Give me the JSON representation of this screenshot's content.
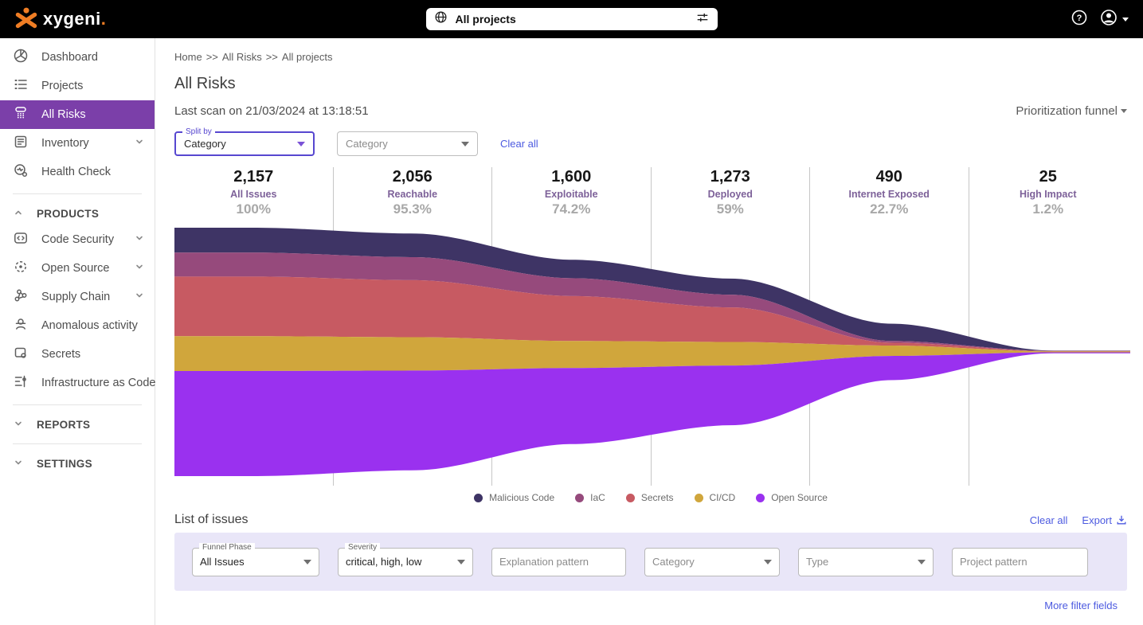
{
  "topbar": {
    "logo_text": "xygeni",
    "logo_dot": ".",
    "project_selector": {
      "value": "All projects",
      "left_icon": "globe-icon",
      "right_icon": "tune-icon"
    }
  },
  "sidebar": {
    "main_items": [
      {
        "label": "Dashboard",
        "icon": "dashboard-icon",
        "selected": false,
        "chevron": false
      },
      {
        "label": "Projects",
        "icon": "projects-icon",
        "selected": false,
        "chevron": false
      },
      {
        "label": "All Risks",
        "icon": "funnel-icon",
        "selected": true,
        "chevron": false
      },
      {
        "label": "Inventory",
        "icon": "inventory-icon",
        "selected": false,
        "chevron": true
      },
      {
        "label": "Health Check",
        "icon": "health-icon",
        "selected": false,
        "chevron": false
      }
    ],
    "sections": [
      {
        "label": "PRODUCTS",
        "chevron": "up",
        "items": [
          {
            "label": "Code Security",
            "icon": "code-security-icon",
            "chevron": true
          },
          {
            "label": "Open Source",
            "icon": "open-source-icon",
            "chevron": true
          },
          {
            "label": "Supply Chain",
            "icon": "supply-chain-icon",
            "chevron": true
          },
          {
            "label": "Anomalous activity",
            "icon": "anomalous-activity-icon",
            "chevron": false
          },
          {
            "label": "Secrets",
            "icon": "secrets-icon",
            "chevron": false
          },
          {
            "label": "Infrastructure as Code",
            "icon": "iac-icon",
            "chevron": false
          }
        ]
      },
      {
        "label": "REPORTS",
        "chevron": "down",
        "items": []
      },
      {
        "label": "SETTINGS",
        "chevron": "down",
        "items": []
      }
    ]
  },
  "header": {
    "breadcrumb": {
      "parts": [
        "Home",
        "All Risks",
        "All projects"
      ],
      "separator": ">>"
    },
    "title": "All Risks",
    "last_scan": "Last scan on 21/03/2024 at 13:18:51",
    "view_selector": "Prioritization funnel"
  },
  "chart_filters": {
    "split_by": {
      "label": "Split by",
      "value": "Category"
    },
    "category": {
      "placeholder": "Category"
    },
    "clear_all": "Clear all"
  },
  "chart_data": {
    "type": "area",
    "variant": "centered-stream prioritization funnel",
    "grid": "vertical stage dividers",
    "legend_position": "bottom",
    "stages": [
      {
        "count": "2,157",
        "label": "All Issues",
        "pct": "100%",
        "total": 2157
      },
      {
        "count": "2,056",
        "label": "Reachable",
        "pct": "95.3%",
        "total": 2056
      },
      {
        "count": "1,600",
        "label": "Exploitable",
        "pct": "74.2%",
        "total": 1600
      },
      {
        "count": "1,273",
        "label": "Deployed",
        "pct": "59%",
        "total": 1273
      },
      {
        "count": "490",
        "label": "Internet Exposed",
        "pct": "22.7%",
        "total": 490
      },
      {
        "count": "25",
        "label": "High Impact",
        "pct": "1.2%",
        "total": 25
      }
    ],
    "series": [
      {
        "name": "Malicious Code",
        "color": "#3e3465",
        "values": [
          216,
          205,
          160,
          140,
          150,
          3
        ]
      },
      {
        "name": "IaC",
        "color": "#964a7c",
        "values": [
          208,
          200,
          155,
          110,
          15,
          2
        ]
      },
      {
        "name": "Secrets",
        "color": "#c75a62",
        "values": [
          518,
          495,
          390,
          300,
          25,
          3
        ]
      },
      {
        "name": "CI/CD",
        "color": "#d0a63c",
        "values": [
          302,
          290,
          235,
          205,
          90,
          8
        ]
      },
      {
        "name": "Open Source",
        "color": "#9a31ef",
        "values": [
          913,
          866,
          660,
          518,
          210,
          9
        ]
      }
    ]
  },
  "issues": {
    "title": "List of issues",
    "clear_all": "Clear all",
    "export_label": "Export",
    "more_filters": "More filter fields",
    "fields": [
      {
        "type": "select",
        "label": "Funnel Phase",
        "value": "All Issues"
      },
      {
        "type": "select",
        "label": "Severity",
        "value": "critical, high, low"
      },
      {
        "type": "text",
        "placeholder": "Explanation pattern"
      },
      {
        "type": "select",
        "placeholder": "Category"
      },
      {
        "type": "select",
        "placeholder": "Type"
      },
      {
        "type": "text",
        "placeholder": "Project pattern"
      }
    ]
  },
  "colors": {
    "sidebar_selected": "#7b3fa9",
    "link_blue": "#4c5ae0",
    "filter_accent": "#5747d0",
    "panel_lavender": "#e9e6f8",
    "logo_orange": "#ef7d24"
  }
}
